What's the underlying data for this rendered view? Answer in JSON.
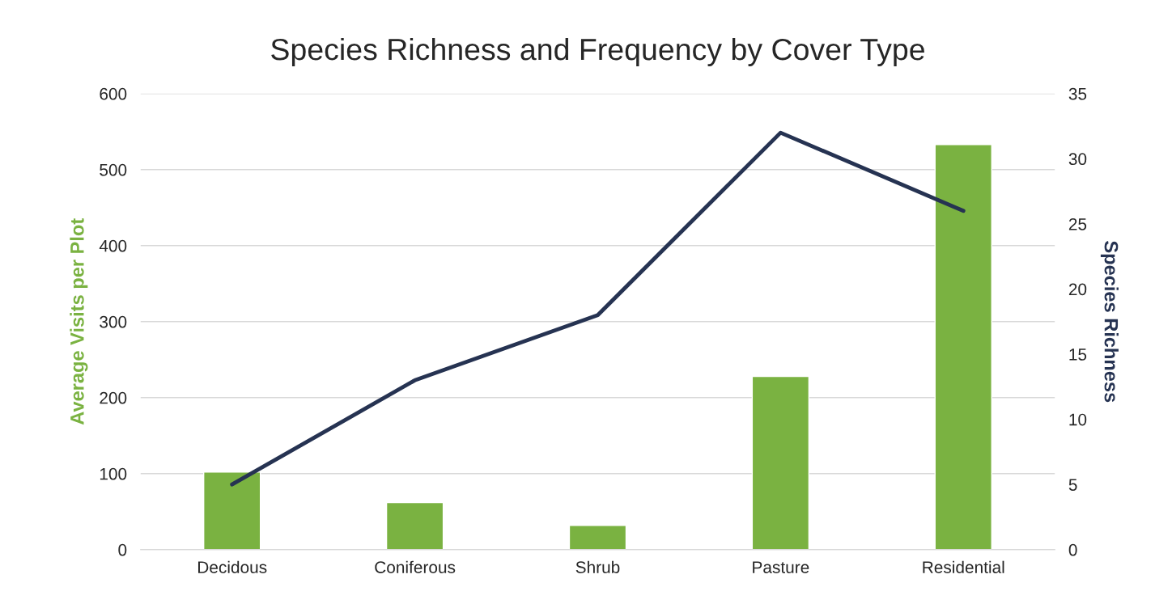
{
  "chart_data": {
    "type": "bar",
    "title": "Species Richness and Frequency by Cover Type",
    "ylabel": "Average Visits per Plot",
    "y2label": "Species Richness",
    "categories": [
      "Decidous",
      "Coniferous",
      "Shrub",
      "Pasture",
      "Residential"
    ],
    "series": [
      {
        "color": "#7ab241",
        "values": [
          102,
          62,
          32,
          228,
          533
        ]
      },
      {
        "type": "line",
        "axis": "y2",
        "color": "#263352",
        "values": [
          5,
          13,
          18,
          32,
          26
        ]
      }
    ],
    "ylim": [
      0,
      600
    ],
    "yticks": [
      0,
      100,
      200,
      300,
      400,
      500,
      600
    ],
    "y2lim": [
      0,
      35
    ],
    "y2ticks": [
      0,
      5,
      10,
      15,
      20,
      25,
      30,
      35
    ],
    "grid": "y",
    "legend": false
  }
}
